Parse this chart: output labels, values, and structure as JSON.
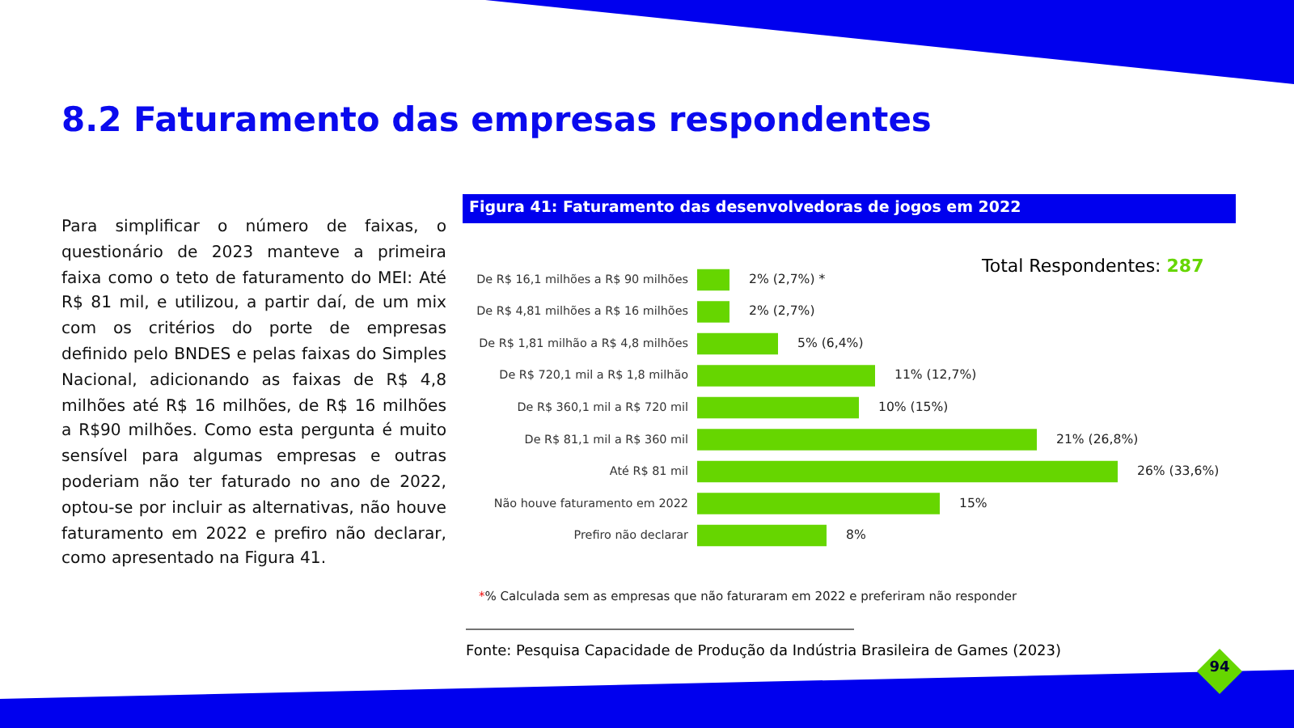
{
  "chart_data": {
    "type": "bar",
    "orientation": "horizontal",
    "title": "8.2 Faturamento das empresas respondentes",
    "subtitle": "Figura 41: Faturamento das desenvolvedoras de jogos em 2022",
    "categories": [
      "De R$ 16,1 milhões a R$ 90 milhões",
      "De R$ 4,81 milhões a R$ 16 milhões",
      "De R$ 1,81 milhão a R$ 4,8 milhões",
      "De R$ 720,1 mil a R$ 1,8 milhão",
      "De R$ 360,1 mil a R$ 720 mil",
      "De R$ 81,1 mil a R$ 360 mil",
      "Até R$ 81 mil",
      "Não houve faturamento em 2022",
      "Prefiro não declarar"
    ],
    "values": [
      2,
      2,
      5,
      11,
      10,
      21,
      26,
      15,
      8
    ],
    "value_labels": [
      "2%   (2,7%) *",
      "2%   (2,7%)",
      "5%   (6,4%)",
      "11%   (12,7%)",
      "10%   (15%)",
      "21%   (26,8%)",
      "26%   (33,6%)",
      "15%",
      "8%"
    ],
    "color": "#66d600",
    "annotations": [
      "Para simplificar o número de faixas, o questionário de 2023 manteve a primeira faixa como o teto de faturamento do MEI: Até R$ 81 mil, e utilizou, a partir daí, de um mix com os critérios do porte de empresas definido pelo BNDES e pelas faixas do Simples Nacional, adicionando as faixas de R$ 4,8 milhões até R$ 16 milhões, de R$ 16 milhões a R$90 milhões. Como esta pergunta é muito sensível para algumas empresas e outras poderiam não ter faturado no ano de 2022, optou-se por incluir as alternativas, não houve faturamento em 2022 e prefiro não declarar, como apresentado na Figura 41.",
      "Total Respondentes: 287",
      "*% Calculada sem as empresas que não faturaram em 2022 e preferiram não responder",
      "Fonte: Pesquisa Capacidade de Produção da Indústria Brasileira de Games (2023)",
      "94"
    ]
  }
}
